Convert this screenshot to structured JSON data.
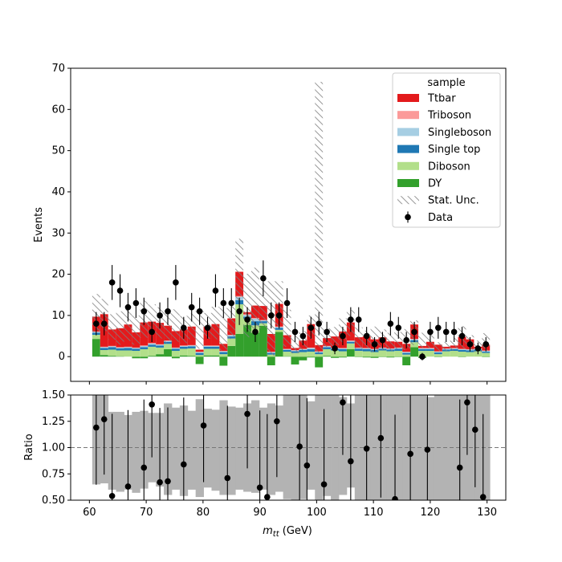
{
  "chart_data": [
    {
      "type": "stacked-bar-histogram",
      "ylabel": "Events",
      "ylim": [
        -6.0,
        70
      ],
      "yticks": [
        0,
        10,
        20,
        30,
        40,
        50,
        60,
        70
      ],
      "xlim": [
        56.7,
        133.3
      ],
      "xticks": [
        60,
        70,
        80,
        90,
        100,
        110,
        120,
        130
      ],
      "bin_edges": [
        60.5,
        61.9,
        63.3,
        64.7,
        66.1,
        67.5,
        68.9,
        70.3,
        71.7,
        73.1,
        74.5,
        75.9,
        77.3,
        78.7,
        80.1,
        81.5,
        82.9,
        84.3,
        85.7,
        87.1,
        88.5,
        89.9,
        91.3,
        92.7,
        94.1,
        95.5,
        96.9,
        98.3,
        99.7,
        101.1,
        102.5,
        103.9,
        105.3,
        106.7,
        108.1,
        109.5,
        110.9,
        112.3,
        113.7,
        115.1,
        116.5,
        117.9,
        119.3,
        120.7,
        122.1,
        123.5,
        124.9,
        126.3,
        127.7,
        129.1,
        130.5
      ],
      "legend": {
        "title": "sample",
        "position": "top-right",
        "entries": [
          "Ttbar",
          "Triboson",
          "Singleboson",
          "Single top",
          "Diboson",
          "DY",
          "Stat. Unc.",
          "Data"
        ]
      },
      "series": [
        {
          "name": "DY",
          "color": "#33a02c",
          "values": [
            4.3,
            0.4,
            0.2,
            0.1,
            0.0,
            -0.4,
            -0.4,
            0.2,
            0.6,
            1.8,
            -0.4,
            0.3,
            0.2,
            -1.8,
            0.3,
            0.3,
            -2.2,
            2.6,
            5.5,
            7.7,
            5.8,
            7.5,
            -2.1,
            6.0,
            0.1,
            -1.9,
            -0.9,
            -0.2,
            -2.6,
            0.2,
            -0.3,
            -0.2,
            1.8,
            -0.1,
            -0.2,
            -0.3,
            -0.1,
            -0.2,
            -0.1,
            -2.1,
            2.3,
            -0.3,
            0.0,
            -0.1,
            0.0,
            0.0,
            -0.1,
            0.0,
            0.0,
            -0.1
          ]
        },
        {
          "name": "Diboson",
          "color": "#b2df8a",
          "values": [
            1.0,
            1.2,
            1.5,
            1.4,
            1.5,
            1.4,
            1.8,
            2.2,
            1.6,
            1.3,
            1.4,
            1.6,
            1.8,
            0.4,
            1.6,
            1.6,
            0.6,
            1.8,
            7.2,
            1.4,
            1.8,
            0.6,
            0.5,
            0.5,
            1.1,
            0.9,
            1.1,
            1.2,
            0.6,
            1.6,
            1.5,
            1.3,
            1.4,
            1.4,
            1.3,
            1.1,
            1.5,
            1.3,
            1.4,
            0.5,
            1.2,
            1.4,
            1.4,
            0.6,
            1.3,
            1.4,
            1.2,
            1.1,
            1.3,
            0.9
          ]
        },
        {
          "name": "Single top",
          "color": "#1f78b4",
          "values": [
            0.5,
            0.5,
            0.6,
            0.5,
            0.6,
            0.5,
            0.5,
            0.5,
            0.5,
            0.5,
            0.5,
            0.5,
            0.5,
            0.5,
            0.5,
            0.5,
            0.5,
            0.5,
            1.0,
            0.6,
            1.0,
            0.5,
            0.4,
            0.5,
            0.4,
            0.4,
            0.5,
            0.6,
            0.4,
            0.5,
            0.4,
            0.5,
            0.4,
            0.5,
            0.5,
            0.5,
            0.4,
            0.4,
            0.5,
            0.4,
            0.5,
            0.4,
            0.4,
            0.4,
            0.4,
            0.4,
            0.4,
            0.4,
            0.4,
            0.3
          ]
        },
        {
          "name": "Singleboson",
          "color": "#a6cee3",
          "values": [
            0.2,
            0.2,
            0.2,
            0.2,
            0.2,
            0.2,
            0.3,
            0.3,
            0.2,
            0.2,
            0.2,
            0.2,
            0.2,
            0.2,
            0.2,
            0.2,
            0.2,
            0.3,
            0.8,
            0.4,
            0.6,
            0.2,
            0.2,
            0.2,
            0.2,
            0.2,
            0.2,
            0.3,
            0.2,
            0.2,
            0.2,
            0.2,
            0.2,
            0.2,
            0.2,
            0.2,
            0.2,
            0.2,
            0.2,
            0.2,
            0.2,
            0.2,
            0.2,
            0.2,
            0.2,
            0.2,
            0.2,
            0.2,
            0.2,
            0.2
          ]
        },
        {
          "name": "Triboson",
          "color": "#fb9a99",
          "values": [
            0.1,
            0.1,
            0.1,
            0.1,
            0.1,
            0.1,
            0.1,
            0.1,
            0.1,
            0.1,
            0.1,
            0.1,
            0.1,
            0.1,
            0.1,
            0.1,
            0.1,
            0.1,
            0.2,
            0.2,
            0.2,
            0.1,
            0.1,
            0.1,
            0.1,
            0.1,
            0.1,
            0.1,
            0.1,
            0.1,
            0.1,
            0.1,
            0.1,
            0.1,
            0.1,
            0.1,
            0.1,
            0.1,
            0.1,
            0.1,
            0.1,
            0.1,
            0.1,
            0.1,
            0.1,
            0.1,
            0.1,
            0.1,
            0.1,
            0.1
          ]
        },
        {
          "name": "Ttbar",
          "color": "#e31a1c",
          "values": [
            3.6,
            7.9,
            4.0,
            4.6,
            5.4,
            3.7,
            5.6,
            5.2,
            5.2,
            3.6,
            4.0,
            3.9,
            4.5,
            0.5,
            4.6,
            5.2,
            1.7,
            4.0,
            5.9,
            0.5,
            3.0,
            3.4,
            4.3,
            5.5,
            3.3,
            0.5,
            2.0,
            5.7,
            1.5,
            1.9,
            2.7,
            4.0,
            4.4,
            2.5,
            2.8,
            2.3,
            2.5,
            1.7,
            1.4,
            1.9,
            3.5,
            0.5,
            1.5,
            1.6,
            0.4,
            0.6,
            2.9,
            2.4,
            0.4,
            1.4
          ]
        }
      ],
      "stat_unc": {
        "name": "Stat. Unc.",
        "low": [
          6.0,
          6.2,
          4.1,
          2.9,
          3.8,
          2.9,
          4.6,
          5.3,
          4.4,
          3.3,
          3.6,
          3.3,
          4.2,
          1.9,
          4.3,
          4.2,
          1.5,
          4.3,
          13.7,
          4.7,
          6.1,
          6.9,
          0.2,
          7.4,
          2.4,
          0.8,
          1.6,
          4.3,
          0.8,
          2.4,
          2.1,
          3.5,
          5.0,
          2.0,
          2.0,
          1.1,
          1.7,
          1.4,
          1.9,
          1.6,
          2.8,
          2.2,
          2.1,
          1.3,
          1.4,
          1.5,
          2.0,
          1.7,
          1.1,
          1.5
        ],
        "high": [
          15.2,
          14.0,
          10.3,
          11.0,
          11.4,
          10.0,
          13.6,
          12.7,
          12.0,
          11.6,
          11.5,
          9.9,
          10.5,
          11.2,
          10.6,
          12.1,
          11.8,
          12.4,
          28.6,
          20.1,
          21.6,
          17.9,
          18.3,
          18.3,
          11.4,
          5.6,
          6.2,
          10.0,
          66.7,
          6.9,
          7.2,
          9.3,
          11.3,
          7.1,
          6.3,
          7.3,
          6.6,
          5.8,
          6.0,
          6.7,
          8.8,
          5.8,
          5.3,
          3.5,
          3.6,
          4.6,
          7.4,
          5.2,
          3.9,
          5.7
        ]
      },
      "data_points": {
        "name": "Data",
        "x": [
          61.2,
          62.6,
          64.0,
          65.4,
          66.8,
          68.2,
          69.6,
          71.0,
          72.4,
          73.8,
          75.2,
          76.6,
          78.0,
          79.4,
          80.8,
          82.2,
          83.6,
          85.0,
          86.4,
          87.8,
          89.2,
          90.6,
          92.0,
          93.4,
          94.8,
          96.2,
          97.6,
          99.0,
          100.4,
          101.8,
          103.2,
          104.6,
          106.0,
          107.4,
          108.8,
          110.2,
          111.6,
          113.0,
          114.4,
          115.8,
          117.2,
          118.6,
          120.0,
          121.4,
          122.8,
          124.2,
          125.6,
          127.0,
          128.4,
          129.8
        ],
        "y": [
          8,
          8,
          18,
          16,
          12,
          13,
          11,
          6,
          10,
          11,
          18,
          7,
          12,
          11,
          7,
          16,
          13,
          13,
          11,
          9,
          6,
          19,
          10,
          10,
          13,
          6,
          5,
          7,
          8,
          6,
          2,
          5,
          9,
          9,
          5,
          3,
          4,
          8,
          7,
          4,
          6,
          0,
          6,
          7,
          6,
          6,
          5,
          3,
          2,
          3
        ]
      }
    },
    {
      "type": "ratio",
      "xlabel": "m_tt (GeV)",
      "ylabel": "Ratio",
      "ylim": [
        0.5,
        1.5
      ],
      "yticks": [
        "0.50",
        "0.75",
        "1.00",
        "1.25",
        "1.50"
      ],
      "reference_line": 1.0,
      "unc_band": {
        "low": [
          0.65,
          0.66,
          0.6,
          0.58,
          0.6,
          0.57,
          0.61,
          0.67,
          0.63,
          0.55,
          0.6,
          0.54,
          0.6,
          0.53,
          0.62,
          0.59,
          0.55,
          0.55,
          0.6,
          0.58,
          0.57,
          0.6,
          0.55,
          0.58,
          0.51,
          0.46,
          0.51,
          0.6,
          0.05,
          0.54,
          0.45,
          0.55,
          0.62,
          0.45,
          0.49,
          0.4,
          0.42,
          0.4,
          0.47,
          0.35,
          0.47,
          0.4,
          0.5,
          0.48,
          0.4,
          0.4,
          0.48,
          0.46,
          0.38,
          0.31
        ],
        "high": [
          1.5,
          1.5,
          1.34,
          1.34,
          1.31,
          1.34,
          1.35,
          1.33,
          1.33,
          1.42,
          1.38,
          1.4,
          1.35,
          1.46,
          1.37,
          1.36,
          1.45,
          1.39,
          1.38,
          1.42,
          1.45,
          1.38,
          1.42,
          1.4,
          1.5,
          1.5,
          1.5,
          1.44,
          1.95,
          1.5,
          1.5,
          1.48,
          1.42,
          1.5,
          1.5,
          1.56,
          1.55,
          1.56,
          1.5,
          1.62,
          1.5,
          1.6,
          1.48,
          1.5,
          1.56,
          1.55,
          1.5,
          1.52,
          1.6,
          1.68
        ]
      },
      "points": {
        "x": [
          61.2,
          62.6,
          64.0,
          66.8,
          69.6,
          71.0,
          72.4,
          73.8,
          76.6,
          80.1,
          84.3,
          87.8,
          90.0,
          91.3,
          93.0,
          97.0,
          98.3,
          101.3,
          104.6,
          106.0,
          108.8,
          111.3,
          113.8,
          116.5,
          119.5,
          125.2,
          126.5,
          127.9,
          129.3
        ],
        "y": [
          1.19,
          1.27,
          0.54,
          0.63,
          0.81,
          1.41,
          0.67,
          0.68,
          0.84,
          1.21,
          0.71,
          1.32,
          0.62,
          0.53,
          1.25,
          1.01,
          0.83,
          0.65,
          1.43,
          0.87,
          0.99,
          1.09,
          0.51,
          0.94,
          0.98,
          0.81,
          1.43,
          1.17,
          0.53
        ]
      }
    }
  ]
}
